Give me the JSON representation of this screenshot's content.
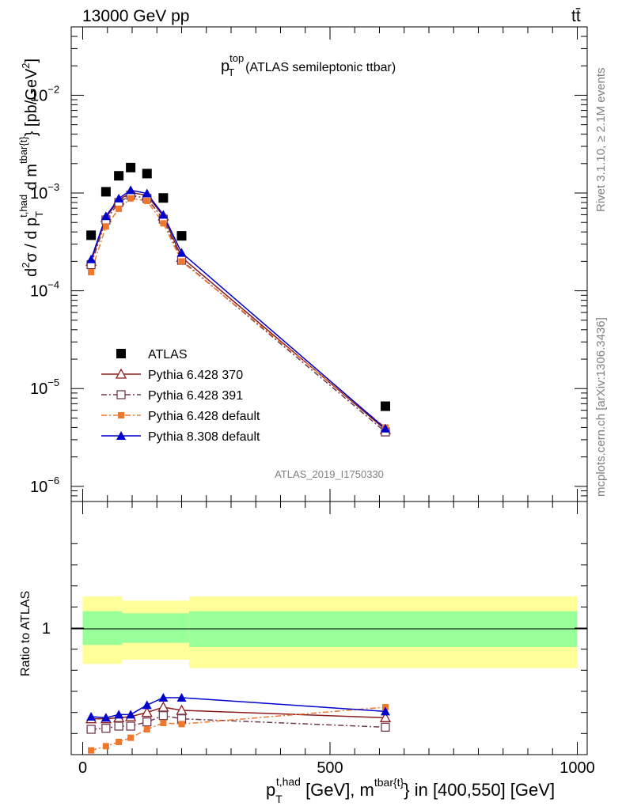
{
  "header": {
    "left": "13000 GeV pp",
    "right": "tt̄"
  },
  "side_labels": {
    "rivet": "Rivet 3.1.10, ≥ 2.1M events",
    "mcplots": "mcplots.cern.ch [arXiv:1306.3436]"
  },
  "watermark": "ATLAS_2019_I1750330",
  "colors": {
    "data": "#000000",
    "p370": "#8b1a1a",
    "p391": "#6e3a52",
    "p6def": "#f0782d",
    "p8def": "#0000cc",
    "band_inner": "#99ff99",
    "band_outer": "#ffff99"
  },
  "chart_data": [
    {
      "type": "scatter",
      "title_parts": {
        "p": "p",
        "sup": "top",
        "sub": "T",
        "rest": "(ATLAS semileptonic ttbar)"
      },
      "ylabel": "d²σ / d p_T^{t,had} d m^{tbar{t}} [pb/GeV²]",
      "ylabel_parts": {
        "d": "d",
        "two": "2",
        "sigma": "σ / d p",
        "tsub": "T",
        "tsup": "t,had",
        "dm": " d m",
        "msup": "tbar{t}",
        "unit": "} [pb/GeV",
        "unit2": "2",
        "close": "]"
      },
      "yscale": "log",
      "ylim": [
        7e-07,
        0.05
      ],
      "xlim": [
        -20,
        1020
      ],
      "y_ticks": [
        {
          "base": "10",
          "exp": "−6",
          "value": 1e-06
        },
        {
          "base": "10",
          "exp": "−5",
          "value": 1e-05
        },
        {
          "base": "10",
          "exp": "−4",
          "value": 0.0001
        },
        {
          "base": "10",
          "exp": "−3",
          "value": 0.001
        },
        {
          "base": "10",
          "exp": "−2",
          "value": 0.01
        }
      ],
      "legend_position": "lower-left",
      "series": [
        {
          "name": "ATLAS",
          "key": "data",
          "marker": "square-filled",
          "line": "none",
          "x": [
            17,
            47,
            73,
            97,
            130,
            163,
            200,
            612
          ],
          "y": [
            0.00037,
            0.00103,
            0.0015,
            0.00182,
            0.00158,
            0.00089,
            0.000365,
            6.6e-06
          ]
        },
        {
          "name": "Pythia 6.428 370",
          "key": "p370",
          "marker": "triangle-open",
          "line": "solid",
          "x": [
            17,
            47,
            73,
            97,
            130,
            163,
            200,
            612
          ],
          "y": [
            0.0002,
            0.00056,
            0.00085,
            0.00101,
            0.00095,
            0.00058,
            0.00022,
            3.8e-06
          ]
        },
        {
          "name": "Pythia 6.428 391",
          "key": "p391",
          "marker": "square-open",
          "line": "dashdot",
          "x": [
            17,
            47,
            73,
            97,
            130,
            163,
            200,
            612
          ],
          "y": [
            0.000185,
            0.00053,
            0.0008,
            0.00095,
            0.00088,
            0.00054,
            0.000205,
            3.6e-06
          ]
        },
        {
          "name": "Pythia 6.428 default",
          "key": "p6def",
          "marker": "square-small-filled",
          "line": "dashdot",
          "x": [
            17,
            47,
            73,
            97,
            130,
            163,
            200,
            612
          ],
          "y": [
            0.000155,
            0.000455,
            0.00069,
            0.00088,
            0.00083,
            0.00049,
            0.0002,
            4e-06
          ]
        },
        {
          "name": "Pythia 8.308 default",
          "key": "p8def",
          "marker": "triangle-filled",
          "line": "solid",
          "x": [
            17,
            47,
            73,
            97,
            130,
            163,
            200,
            612
          ],
          "y": [
            0.00021,
            0.00058,
            0.00088,
            0.00107,
            0.00099,
            0.0006,
            0.000245,
            3.9e-06
          ]
        }
      ]
    },
    {
      "type": "scatter",
      "ylabel": "Ratio to ATLAS",
      "xlabel_parts": {
        "p": "p",
        "sub": "T",
        "sup": "t,had",
        "mid": " [GeV], m",
        "msup": "tbar{t}",
        "rest": "} in [400,550] [GeV]"
      },
      "xlim": [
        -20,
        1020
      ],
      "ylim": [
        0.4,
        1.6
      ],
      "x_ticks": [
        0,
        500,
        1000
      ],
      "x_tick_labels": [
        "0",
        "500",
        "1000"
      ],
      "y_ticks": [
        1
      ],
      "y_tick_labels": [
        "1"
      ],
      "bands": [
        {
          "x0": 0,
          "x1": 80,
          "outer": [
            0.83,
            1.15
          ],
          "inner": [
            0.92,
            1.08
          ]
        },
        {
          "x0": 80,
          "x1": 215,
          "outer": [
            0.85,
            1.13
          ],
          "inner": [
            0.93,
            1.07
          ]
        },
        {
          "x0": 215,
          "x1": 1000,
          "outer": [
            0.81,
            1.15
          ],
          "inner": [
            0.91,
            1.08
          ]
        }
      ],
      "series": [
        {
          "key": "p370",
          "x": [
            17,
            47,
            73,
            97,
            130,
            163,
            200,
            612
          ],
          "y": [
            0.57,
            0.57,
            0.575,
            0.58,
            0.6,
            0.625,
            0.61,
            0.575
          ]
        },
        {
          "key": "p391",
          "x": [
            17,
            47,
            73,
            97,
            130,
            163,
            200,
            612
          ],
          "y": [
            0.52,
            0.525,
            0.535,
            0.535,
            0.555,
            0.585,
            0.57,
            0.53
          ]
        },
        {
          "key": "p6def",
          "x": [
            17,
            47,
            73,
            97,
            130,
            163,
            200,
            612
          ],
          "y": [
            0.42,
            0.44,
            0.46,
            0.48,
            0.52,
            0.55,
            0.545,
            0.625
          ]
        },
        {
          "key": "p8def",
          "x": [
            17,
            47,
            73,
            97,
            130,
            163,
            200,
            612
          ],
          "y": [
            0.58,
            0.575,
            0.59,
            0.59,
            0.635,
            0.67,
            0.67,
            0.605
          ]
        }
      ]
    }
  ]
}
